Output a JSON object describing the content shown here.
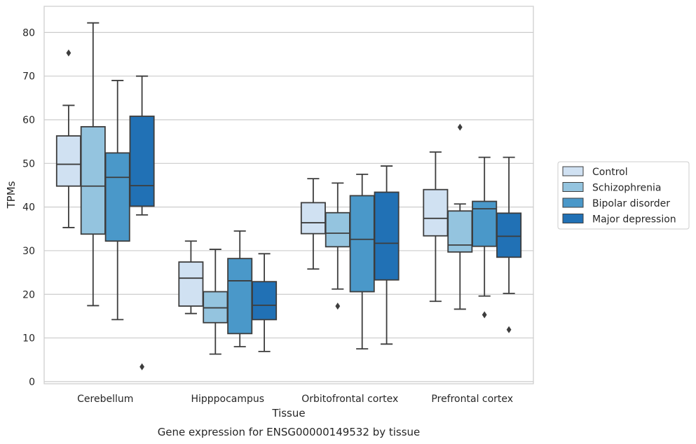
{
  "chart_data": {
    "type": "box",
    "title": "",
    "caption": "Gene expression for ENSG00000149532 by tissue",
    "xlabel": "Tissue",
    "ylabel": "TPMs",
    "ylim": [
      -0.5,
      86
    ],
    "yticks": [
      0,
      10,
      20,
      30,
      40,
      50,
      60,
      70,
      80
    ],
    "grid": "horizontal",
    "legend_position": "right",
    "categories": [
      "Cerebellum",
      "Hipppocampus",
      "Orbitofrontal cortex",
      "Prefrontal cortex"
    ],
    "series": [
      {
        "name": "Control",
        "color": "#d0e1f2",
        "boxes": [
          {
            "whisker_low": 35.3,
            "q1": 44.8,
            "median": 49.8,
            "q3": 56.3,
            "whisker_high": 63.3,
            "outliers": [
              75.3
            ]
          },
          {
            "whisker_low": 15.6,
            "q1": 17.3,
            "median": 23.7,
            "q3": 27.4,
            "whisker_high": 32.2,
            "outliers": []
          },
          {
            "whisker_low": 25.8,
            "q1": 33.9,
            "median": 36.4,
            "q3": 41.0,
            "whisker_high": 46.5,
            "outliers": []
          },
          {
            "whisker_low": 18.4,
            "q1": 33.4,
            "median": 37.4,
            "q3": 44.0,
            "whisker_high": 52.6,
            "outliers": []
          }
        ]
      },
      {
        "name": "Schizophrenia",
        "color": "#94c4df",
        "boxes": [
          {
            "whisker_low": 17.4,
            "q1": 33.8,
            "median": 44.8,
            "q3": 58.4,
            "whisker_high": 82.2,
            "outliers": []
          },
          {
            "whisker_low": 6.3,
            "q1": 13.5,
            "median": 16.9,
            "q3": 20.6,
            "whisker_high": 30.3,
            "outliers": []
          },
          {
            "whisker_low": 21.2,
            "q1": 30.9,
            "median": 34.0,
            "q3": 38.7,
            "whisker_high": 45.5,
            "outliers": [
              17.3
            ]
          },
          {
            "whisker_low": 16.6,
            "q1": 29.7,
            "median": 31.3,
            "q3": 39.1,
            "whisker_high": 40.7,
            "outliers": [
              58.3
            ]
          }
        ]
      },
      {
        "name": "Bipolar disorder",
        "color": "#4a98c9",
        "boxes": [
          {
            "whisker_low": 14.2,
            "q1": 32.2,
            "median": 46.8,
            "q3": 52.4,
            "whisker_high": 69.0,
            "outliers": []
          },
          {
            "whisker_low": 8.0,
            "q1": 11.0,
            "median": 23.1,
            "q3": 28.2,
            "whisker_high": 34.5,
            "outliers": []
          },
          {
            "whisker_low": 7.5,
            "q1": 20.6,
            "median": 32.6,
            "q3": 42.6,
            "whisker_high": 47.5,
            "outliers": []
          },
          {
            "whisker_low": 19.6,
            "q1": 31.0,
            "median": 39.6,
            "q3": 41.3,
            "whisker_high": 51.4,
            "outliers": [
              15.3
            ]
          }
        ]
      },
      {
        "name": "Major depression",
        "color": "#2171b5",
        "boxes": [
          {
            "whisker_low": 38.2,
            "q1": 40.2,
            "median": 44.9,
            "q3": 60.8,
            "whisker_high": 70.0,
            "outliers": [
              3.4
            ]
          },
          {
            "whisker_low": 6.9,
            "q1": 14.2,
            "median": 17.5,
            "q3": 22.9,
            "whisker_high": 29.3,
            "outliers": []
          },
          {
            "whisker_low": 8.6,
            "q1": 23.3,
            "median": 31.7,
            "q3": 43.4,
            "whisker_high": 49.4,
            "outliers": []
          },
          {
            "whisker_low": 20.2,
            "q1": 28.5,
            "median": 33.3,
            "q3": 38.6,
            "whisker_high": 51.4,
            "outliers": [
              11.9
            ]
          }
        ]
      }
    ]
  }
}
